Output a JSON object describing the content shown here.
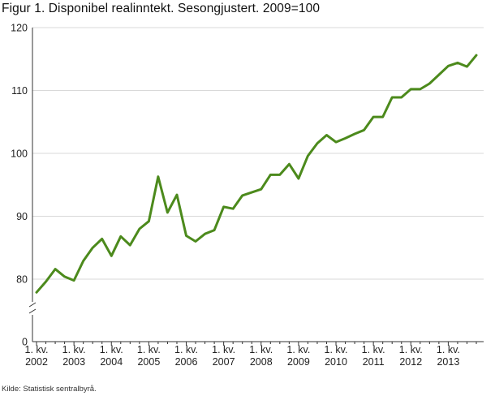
{
  "title": "Figur 1. Disponibel realinntekt. Sesongjustert.  2009=100",
  "source": "Kilde: Statistisk sentralbyrå.",
  "colors": {
    "line": "#4c8a1c",
    "grid": "#d9d9d9",
    "axis": "#333333"
  },
  "chart_data": {
    "type": "line",
    "title": "Figur 1. Disponibel realinntekt. Sesongjustert.  2009=100",
    "xlabel": "",
    "ylabel": "",
    "ylim": [
      75,
      120
    ],
    "axis_break": true,
    "y_ticks": [
      0,
      80,
      90,
      100,
      110,
      120
    ],
    "grid": "horizontal",
    "x_tick_labels": [
      {
        "line1": "1. kv.",
        "line2": "2002"
      },
      {
        "line1": "1. kv.",
        "line2": "2003"
      },
      {
        "line1": "1. kv.",
        "line2": "2004"
      },
      {
        "line1": "1. kv.",
        "line2": "2005"
      },
      {
        "line1": "1. kv.",
        "line2": "2006"
      },
      {
        "line1": "1. kv.",
        "line2": "2007"
      },
      {
        "line1": "1. kv.",
        "line2": "2008"
      },
      {
        "line1": "1. kv.",
        "line2": "2009"
      },
      {
        "line1": "1. kv.",
        "line2": "2010"
      },
      {
        "line1": "1. kv.",
        "line2": "2011"
      },
      {
        "line1": "1. kv.",
        "line2": "2012"
      },
      {
        "line1": "1. kv.",
        "line2": "2013"
      }
    ],
    "series": [
      {
        "name": "Disponibel realinntekt",
        "values": [
          77.9,
          79.6,
          81.6,
          80.4,
          79.8,
          82.9,
          85.0,
          86.4,
          83.7,
          86.8,
          85.4,
          88.0,
          89.2,
          96.3,
          90.6,
          93.4,
          86.9,
          86.0,
          87.2,
          87.8,
          91.5,
          91.2,
          93.3,
          93.8,
          94.3,
          96.6,
          96.6,
          98.3,
          96.0,
          99.6,
          101.6,
          102.9,
          101.8,
          102.4,
          103.1,
          103.7,
          105.8,
          105.8,
          108.9,
          108.9,
          110.2,
          110.2,
          111.1,
          112.5,
          113.9,
          114.4,
          113.8,
          115.6
        ]
      }
    ]
  }
}
